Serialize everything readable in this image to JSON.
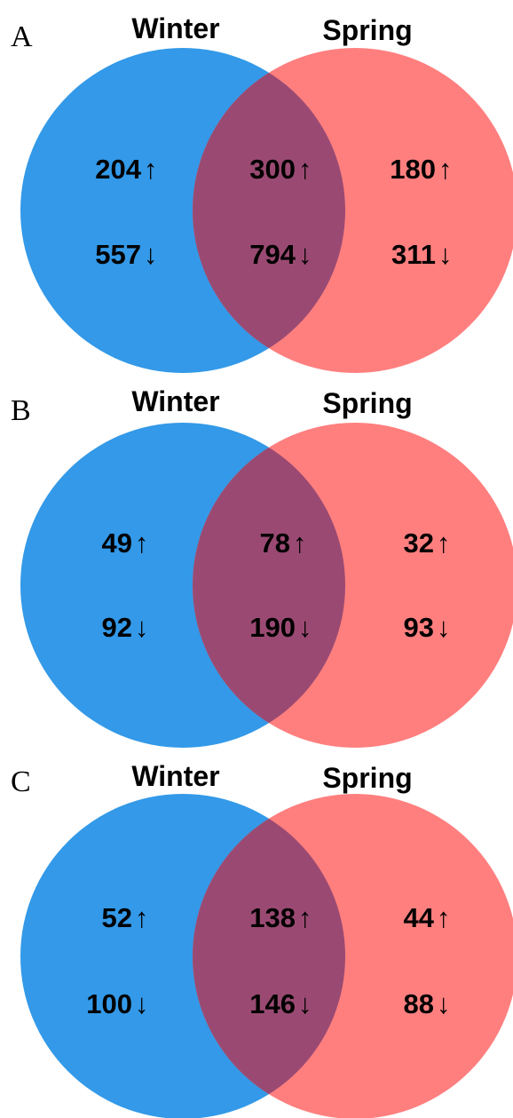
{
  "colors": {
    "winter": "#3399e8",
    "spring": "#ff7f7f",
    "overlap": "#9a4a72",
    "text": "#000000"
  },
  "panels": [
    {
      "letter": "A",
      "left_label": "Winter",
      "right_label": "Spring",
      "winter_only": {
        "up": "204",
        "down": "557"
      },
      "both": {
        "up": "300",
        "down": "794"
      },
      "spring_only": {
        "up": "180",
        "down": "311"
      }
    },
    {
      "letter": "B",
      "left_label": "Winter",
      "right_label": "Spring",
      "winter_only": {
        "up": "49",
        "down": "92"
      },
      "both": {
        "up": "78",
        "down": "190"
      },
      "spring_only": {
        "up": "32",
        "down": "93"
      }
    },
    {
      "letter": "C",
      "left_label": "Winter",
      "right_label": "Spring",
      "winter_only": {
        "up": "52",
        "down": "100"
      },
      "both": {
        "up": "138",
        "down": "146"
      },
      "spring_only": {
        "up": "44",
        "down": "88"
      }
    }
  ],
  "arrows": {
    "up": "↑",
    "down": "↓"
  }
}
